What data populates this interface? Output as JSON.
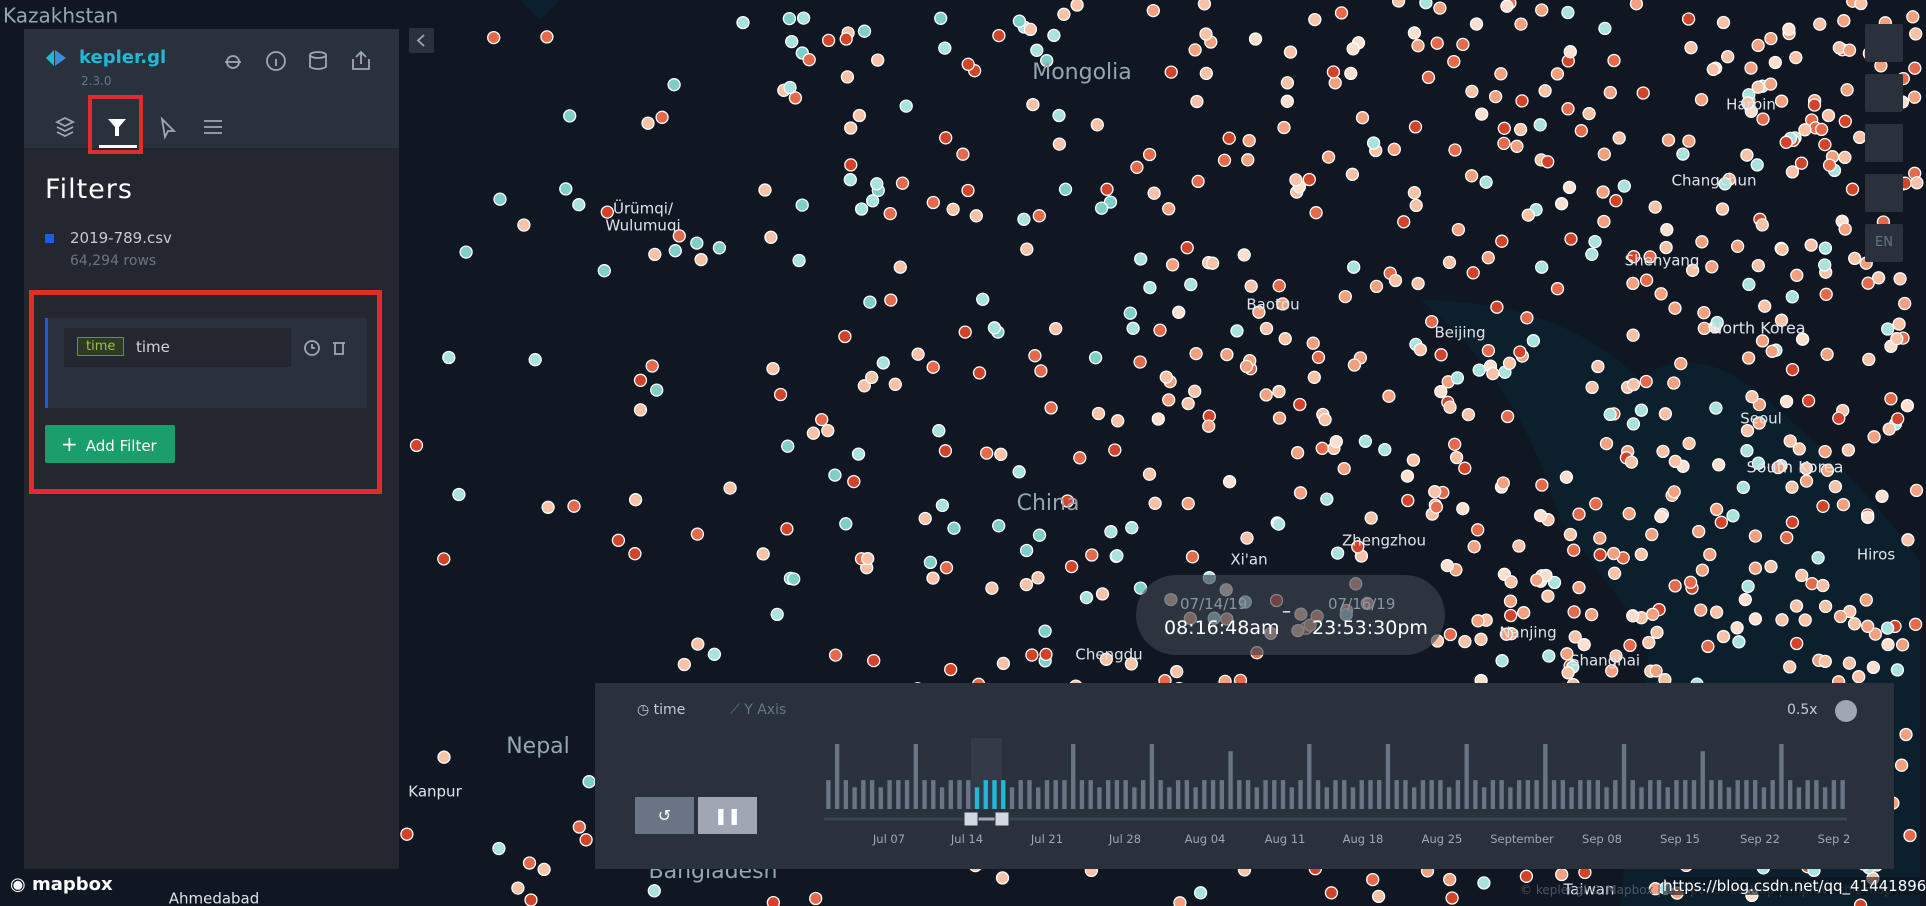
{
  "sidebar": {
    "brand": "kepler.gl",
    "version": "2.3.0",
    "title": "Filters",
    "dataset": "2019-789.csv",
    "rows": "64,294 rows",
    "filter": {
      "tag": "time",
      "field": "time"
    },
    "add_filter": "Add Filter"
  },
  "map_labels": [
    "Kazakhstan",
    "Mongolia",
    "Ürümqi/",
    "Wulumuqi",
    "Harbin",
    "Changchun",
    "Shenyang",
    "Baotou",
    "Beijing",
    "North Korea",
    "Seoul",
    "South Korea",
    "China",
    "Zhengzhou",
    "Xi'an",
    "Hiros",
    "Chengdu",
    "Nanjing",
    "Shanghai",
    "Nepal",
    "Kanpur",
    "Bangladesh",
    "Ahmedabad",
    "Taiwan"
  ],
  "time_range": {
    "start_date": "07/14/19",
    "start_time": "08:16:48am",
    "separator": "–",
    "end_date": "07/16/19",
    "end_time": "23:53:30pm"
  },
  "playback": {
    "field": "time",
    "y_axis": "Y Axis",
    "speed": "0.5x",
    "histogram": [
      4,
      9,
      4,
      3,
      4,
      4,
      3,
      4,
      4,
      4,
      9,
      4,
      4,
      3,
      4,
      4,
      4,
      3,
      4,
      4,
      4,
      3,
      4,
      4,
      3,
      4,
      4,
      4,
      9,
      4,
      4,
      3,
      4,
      4,
      4,
      3,
      4,
      9,
      4,
      3,
      4,
      4,
      3,
      4,
      4,
      4,
      8,
      4,
      4,
      3,
      4,
      4,
      4,
      3,
      4,
      9,
      4,
      3,
      4,
      4,
      3,
      4,
      4,
      4,
      9,
      4,
      4,
      3,
      4,
      4,
      4,
      3,
      4,
      9,
      4,
      3,
      4,
      4,
      3,
      4,
      4,
      4,
      9,
      4,
      4,
      3,
      4,
      4,
      4,
      3,
      4,
      9,
      4,
      3,
      4,
      4,
      3,
      4,
      4,
      4,
      8,
      4,
      4,
      3,
      4,
      4,
      4,
      3,
      4,
      9,
      4,
      3,
      4,
      4,
      3,
      4,
      4
    ],
    "ticks": [
      "Jul 07",
      "Jul 14",
      "Jul 21",
      "Jul 28",
      "Aug 04",
      "Aug 11",
      "Aug 18",
      "Aug 25",
      "September",
      "Sep 08",
      "Sep 15",
      "Sep 22",
      "Sep 2"
    ]
  },
  "right_toolbar": {
    "lang": "EN"
  },
  "footer": {
    "logo": "mapbox",
    "attribution": "© kepler.gl © Mapbox | © OpenStreetMap | Improve this map",
    "url": "https://blog.csdn.net/qq_41441896"
  }
}
